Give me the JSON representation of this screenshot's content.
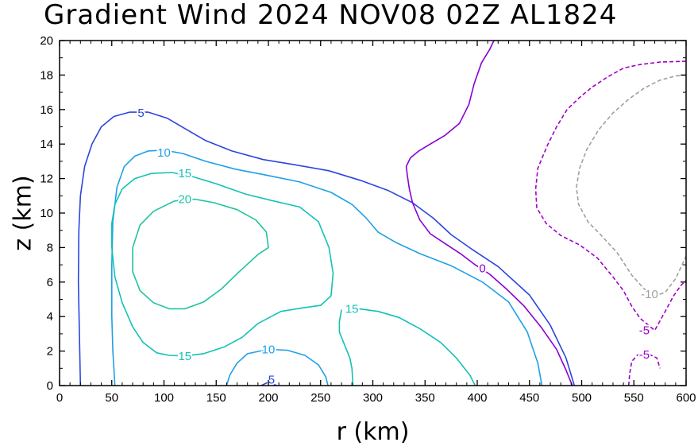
{
  "chart_data": {
    "type": "contour",
    "title": "Gradient Wind 2024 NOV08 02Z  AL1824",
    "xlabel": "r (km)",
    "ylabel": "z (km)",
    "xlim": [
      0,
      600
    ],
    "ylim": [
      0,
      20
    ],
    "xticks": [
      "0",
      "50",
      "100",
      "150",
      "200",
      "250",
      "300",
      "350",
      "400",
      "450",
      "500",
      "550",
      "600"
    ],
    "yticks": [
      "0",
      "2",
      "4",
      "6",
      "8",
      "10",
      "12",
      "14",
      "16",
      "18",
      "20"
    ],
    "grid": false,
    "contours": [
      {
        "level": 5,
        "color": "#2b45e0",
        "style": "solid",
        "label_value": "5",
        "label_pos": [
          [
            78,
            15.8
          ],
          [
            203,
            0.35
          ]
        ],
        "paths": [
          [
            [
              20,
              0
            ],
            [
              19,
              3
            ],
            [
              18,
              6
            ],
            [
              18.5,
              9
            ],
            [
              20,
              11
            ],
            [
              24,
              12.7
            ],
            [
              31,
              14
            ],
            [
              40,
              15
            ],
            [
              52,
              15.6
            ],
            [
              67,
              15.85
            ],
            [
              85,
              15.85
            ],
            [
              103,
              15.5
            ],
            [
              120,
              14.9
            ],
            [
              140,
              14.2
            ],
            [
              165,
              13.6
            ],
            [
              195,
              13.1
            ],
            [
              225,
              12.8
            ],
            [
              258,
              12.45
            ],
            [
              288,
              11.9
            ],
            [
              315,
              11.3
            ],
            [
              338,
              10.6
            ],
            [
              358,
              9.7
            ],
            [
              375,
              8.75
            ],
            [
              395,
              7.9
            ],
            [
              420,
              6.9
            ],
            [
              450,
              5.25
            ],
            [
              470,
              3.5
            ],
            [
              485,
              1.6
            ],
            [
              493,
              0
            ]
          ],
          [
            [
              193,
              0
            ],
            [
              200,
              0.2
            ],
            [
              208,
              0
            ]
          ]
        ]
      },
      {
        "level": 10,
        "color": "#1ea0e8",
        "style": "solid",
        "label_value": "10",
        "label_pos": [
          [
            100,
            13.5
          ],
          [
            200,
            2.1
          ]
        ],
        "paths": [
          [
            [
              53,
              0
            ],
            [
              51,
              2
            ],
            [
              50,
              4
            ],
            [
              50,
              7
            ],
            [
              51,
              9.5
            ],
            [
              55,
              11.5
            ],
            [
              62,
              12.7
            ],
            [
              72,
              13.3
            ],
            [
              85,
              13.6
            ],
            [
              100,
              13.65
            ],
            [
              118,
              13.45
            ],
            [
              140,
              13
            ],
            [
              168,
              12.55
            ],
            [
              198,
              12.2
            ],
            [
              230,
              11.8
            ],
            [
              260,
              11.2
            ],
            [
              280,
              10.5
            ],
            [
              293,
              9.75
            ],
            [
              305,
              8.9
            ],
            [
              322,
              8.3
            ],
            [
              345,
              7.65
            ],
            [
              375,
              6.95
            ],
            [
              405,
              6
            ],
            [
              430,
              4.85
            ],
            [
              448,
              3.1
            ],
            [
              458,
              1.3
            ],
            [
              462,
              0
            ]
          ],
          [
            [
              160,
              0
            ],
            [
              163,
              0.6
            ],
            [
              170,
              1.3
            ],
            [
              180,
              1.85
            ],
            [
              200,
              2.1
            ],
            [
              218,
              2.05
            ],
            [
              235,
              1.75
            ],
            [
              248,
              1.2
            ],
            [
              255,
              0.5
            ],
            [
              257,
              0
            ]
          ]
        ]
      },
      {
        "level": 15,
        "color": "#12c2b6",
        "style": "solid",
        "label_value": "15",
        "label_pos": [
          [
            120,
            12.3
          ],
          [
            120,
            1.7
          ],
          [
            280,
            4.45
          ]
        ],
        "paths": [
          [
            [
              105,
              1.75
            ],
            [
              93,
              1.9
            ],
            [
              80,
              2.5
            ],
            [
              70,
              3.4
            ],
            [
              60,
              4.8
            ],
            [
              53,
              6.3
            ],
            [
              50,
              8
            ],
            [
              50,
              9.4
            ],
            [
              53,
              10.5
            ],
            [
              60,
              11.4
            ],
            [
              72,
              12
            ],
            [
              88,
              12.3
            ],
            [
              108,
              12.35
            ],
            [
              128,
              12.1
            ],
            [
              150,
              11.7
            ],
            [
              178,
              11.1
            ],
            [
              205,
              10.7
            ],
            [
              230,
              10.35
            ],
            [
              248,
              9.5
            ],
            [
              258,
              8
            ],
            [
              262,
              6.5
            ],
            [
              260,
              5.2
            ],
            [
              250,
              4.65
            ],
            [
              232,
              4.5
            ],
            [
              212,
              4.3
            ],
            [
              190,
              3.6
            ],
            [
              175,
              2.8
            ],
            [
              158,
              2.25
            ],
            [
              138,
              1.85
            ],
            [
              120,
              1.72
            ],
            [
              105,
              1.75
            ]
          ],
          [
            [
              270,
              4.4
            ],
            [
              268,
              3.7
            ],
            [
              268,
              3.1
            ],
            [
              272,
              2.5
            ],
            [
              278,
              1.6
            ],
            [
              280,
              1
            ],
            [
              281,
              0
            ]
          ],
          [
            [
              287,
              4.45
            ],
            [
              305,
              4.3
            ],
            [
              325,
              3.95
            ],
            [
              345,
              3.3
            ],
            [
              365,
              2.5
            ],
            [
              380,
              1.6
            ],
            [
              393,
              0.6
            ],
            [
              398,
              0
            ]
          ]
        ]
      },
      {
        "level": 20,
        "color": "#20c4a0",
        "style": "solid",
        "label_value": "20",
        "label_pos": [
          [
            120,
            10.8
          ]
        ],
        "paths": [
          [
            [
              110,
              10.7
            ],
            [
              90,
              10.1
            ],
            [
              77,
              9.3
            ],
            [
              70,
              8
            ],
            [
              70,
              6.6
            ],
            [
              77,
              5.5
            ],
            [
              90,
              4.8
            ],
            [
              105,
              4.45
            ],
            [
              120,
              4.45
            ],
            [
              138,
              4.85
            ],
            [
              155,
              5.6
            ],
            [
              172,
              6.6
            ],
            [
              190,
              7.6
            ],
            [
              200,
              8
            ],
            [
              198,
              8.9
            ],
            [
              188,
              9.6
            ],
            [
              170,
              10.2
            ],
            [
              148,
              10.6
            ],
            [
              130,
              10.8
            ],
            [
              110,
              10.7
            ]
          ]
        ]
      },
      {
        "level": 0,
        "color": "#8a00d4",
        "style": "solid",
        "label_value": "0",
        "label_pos": [
          [
            405,
            6.8
          ]
        ],
        "paths": [
          [
            [
              416,
              20
            ],
            [
              412,
              19.5
            ],
            [
              404,
              18.7
            ],
            [
              397,
              17.5
            ],
            [
              392,
              16.3
            ],
            [
              383,
              15.2
            ],
            [
              369,
              14.5
            ],
            [
              355,
              14
            ],
            [
              344,
              13.6
            ],
            [
              336,
              13.2
            ],
            [
              332,
              12.7
            ],
            [
              333,
              12.2
            ],
            [
              335,
              11.4
            ],
            [
              338,
              10.6
            ],
            [
              345,
              9.6
            ],
            [
              355,
              8.8
            ],
            [
              370,
              8.2
            ],
            [
              385,
              7.6
            ],
            [
              398,
              7
            ],
            [
              412,
              6.45
            ],
            [
              428,
              5.6
            ],
            [
              445,
              4.6
            ],
            [
              461,
              3.4
            ],
            [
              476,
              2.1
            ],
            [
              485,
              0.9
            ],
            [
              491,
              0
            ]
          ]
        ]
      },
      {
        "level": -5,
        "color": "#a000c8",
        "style": "dashed",
        "label_value": "-5",
        "label_pos": [
          [
            560,
            3.2
          ],
          [
            560,
            1.8
          ]
        ],
        "paths": [
          [
            [
              600,
              18.8
            ],
            [
              575,
              18.75
            ],
            [
              555,
              18.6
            ],
            [
              540,
              18.4
            ],
            [
              525,
              17.9
            ],
            [
              510,
              17.3
            ],
            [
              498,
              16.7
            ],
            [
              486,
              16
            ],
            [
              476,
              15
            ],
            [
              467,
              13.9
            ],
            [
              458,
              12.6
            ],
            [
              456,
              11.4
            ],
            [
              457,
              10.3
            ],
            [
              466,
              9.4
            ],
            [
              480,
              8.7
            ],
            [
              498,
              8.15
            ],
            [
              515,
              7.4
            ],
            [
              530,
              6.3
            ],
            [
              540,
              5.5
            ],
            [
              548,
              4.6
            ],
            [
              556,
              3.9
            ],
            [
              570,
              3.2
            ],
            [
              580,
              4.3
            ],
            [
              588,
              5.2
            ],
            [
              595,
              5.8
            ],
            [
              600,
              6.1
            ]
          ],
          [
            [
              545,
              0
            ],
            [
              546,
              0.7
            ],
            [
              548,
              1.4
            ],
            [
              554,
              1.8
            ],
            [
              565,
              1.8
            ],
            [
              572,
              1.6
            ],
            [
              575,
              1
            ]
          ]
        ]
      },
      {
        "level": -10,
        "color": "#a0a0a0",
        "style": "dashed",
        "label_value": "-10",
        "label_pos": [
          [
            565,
            5.3
          ]
        ],
        "paths": [
          [
            [
              600,
              18
            ],
            [
              590,
              17.95
            ],
            [
              575,
              17.7
            ],
            [
              560,
              17.25
            ],
            [
              545,
              16.6
            ],
            [
              530,
              15.8
            ],
            [
              516,
              14.8
            ],
            [
              505,
              13.7
            ],
            [
              498,
              12.6
            ],
            [
              495,
              11.5
            ],
            [
              497,
              10.5
            ],
            [
              506,
              9.5
            ],
            [
              518,
              8.75
            ],
            [
              534,
              7.7
            ],
            [
              548,
              6.4
            ],
            [
              560,
              5.6
            ],
            [
              570,
              5.2
            ],
            [
              580,
              5.4
            ],
            [
              590,
              6.2
            ],
            [
              600,
              7.5
            ]
          ]
        ]
      }
    ]
  }
}
